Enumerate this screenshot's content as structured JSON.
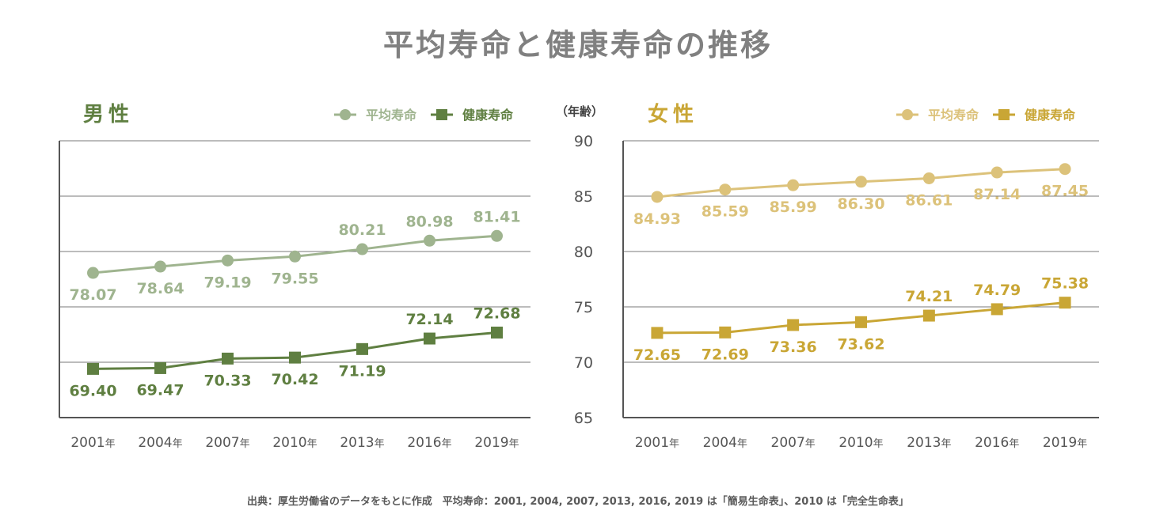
{
  "title": "平均寿命と健康寿命の推移",
  "source_note": "出典：厚生労働省のデータをもとに作成　平均寿命：2001, 2004, 2007, 2013, 2016, 2019 は「簡易生命表」、2010 は「完全生命表」",
  "year_suffix": "年",
  "y_axis_unit": "（年齢）",
  "colors": {
    "male_avg": "#9fb48f",
    "male_healthy": "#5f7f41",
    "female_avg": "#dcc27a",
    "female_healthy": "#c9a635",
    "grid": "#7a7a7a",
    "axis": "#555555",
    "tick_text": "#555555"
  },
  "chart_data": [
    {
      "type": "line",
      "panel_title": "男性",
      "categories": [
        "2001",
        "2004",
        "2007",
        "2010",
        "2013",
        "2016",
        "2019"
      ],
      "ylim": [
        65,
        90
      ],
      "yticks": [
        65,
        70,
        75,
        80,
        85,
        90
      ],
      "grid": true,
      "legend_position": "top-right",
      "series": [
        {
          "name": "平均寿命",
          "marker": "circle",
          "color_key": "male_avg",
          "values": [
            78.07,
            78.64,
            79.19,
            79.55,
            80.21,
            80.98,
            81.41
          ]
        },
        {
          "name": "健康寿命",
          "marker": "square",
          "color_key": "male_healthy",
          "values": [
            69.4,
            69.47,
            70.33,
            70.42,
            71.19,
            72.14,
            72.68
          ]
        }
      ]
    },
    {
      "type": "line",
      "panel_title": "女性",
      "categories": [
        "2001",
        "2004",
        "2007",
        "2010",
        "2013",
        "2016",
        "2019"
      ],
      "ylim": [
        65,
        90
      ],
      "yticks": [
        65,
        70,
        75,
        80,
        85,
        90
      ],
      "grid": true,
      "legend_position": "top-right",
      "series": [
        {
          "name": "平均寿命",
          "marker": "circle",
          "color_key": "female_avg",
          "values": [
            84.93,
            85.59,
            85.99,
            86.3,
            86.61,
            87.14,
            87.45
          ]
        },
        {
          "name": "健康寿命",
          "marker": "square",
          "color_key": "female_healthy",
          "values": [
            72.65,
            72.69,
            73.36,
            73.62,
            74.21,
            74.79,
            75.38
          ]
        }
      ]
    }
  ]
}
